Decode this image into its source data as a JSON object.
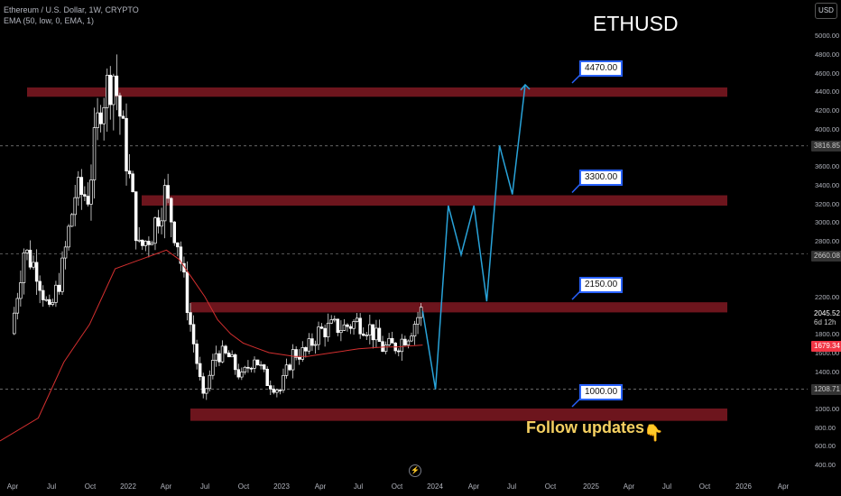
{
  "header": {
    "symbol_line": "Ethereum / U.S. Dollar, 1W, CRYPTO",
    "ema_line": "EMA (50, low, 0, EMA, 1)"
  },
  "title": "ETHUSD",
  "currency_button": "USD",
  "follow_text": "Follow updates",
  "hand_icon": "pointing-down-hand-icon",
  "price_axis": {
    "ticks": [
      "5000.00",
      "4800.00",
      "4600.00",
      "4400.00",
      "4200.00",
      "4000.00",
      "3600.00",
      "3400.00",
      "3200.00",
      "3000.00",
      "2800.00",
      "2200.00",
      "1800.00",
      "1600.00",
      "1400.00",
      "1000.00",
      "800.00",
      "600.00",
      "400.00"
    ]
  },
  "price_markers": {
    "level_3816": "3816.85",
    "level_2660": "2660.08",
    "current_price": "2045.52",
    "countdown": "6d 12h",
    "ema_value": "1679.34",
    "level_1208": "1208.71"
  },
  "time_axis": [
    "Apr",
    "Jul",
    "Oct",
    "2022",
    "Apr",
    "Jul",
    "Oct",
    "2023",
    "Apr",
    "Jul",
    "Oct",
    "2024",
    "Apr",
    "Jul",
    "Oct",
    "2025",
    "Apr",
    "Jul",
    "Oct",
    "2026",
    "Apr"
  ],
  "zones": [
    {
      "label": "4470.00",
      "low": 4340,
      "high": 4440
    },
    {
      "label": "3300.00",
      "low": 3180,
      "high": 3290
    },
    {
      "label": "2150.00",
      "low": 2030,
      "high": 2140
    },
    {
      "label": "1000.00",
      "low": 870,
      "high": 1000
    }
  ],
  "colors": {
    "background": "#000000",
    "zone": "#801922",
    "candle_up": "#ffffff",
    "candle_down": "#ffffff",
    "ema": "#d32f2f",
    "projection": "#29a3d9",
    "current_price_bg": "#ffffff",
    "ema_marker_bg": "#f23645",
    "follow_text": "#f5d061"
  },
  "chart_data": {
    "type": "candlestick",
    "symbol": "ETHUSD",
    "timeframe": "1W",
    "ylim": [
      400,
      5000
    ],
    "x_start": "2021-03",
    "x_end": "2026-04",
    "candles_monthly_approx": [
      {
        "date": "2021-03",
        "close": 1800
      },
      {
        "date": "2021-04",
        "close": 2700
      },
      {
        "date": "2021-05",
        "close": 2500
      },
      {
        "date": "2021-06",
        "close": 2000
      },
      {
        "date": "2021-07",
        "close": 2500
      },
      {
        "date": "2021-08",
        "close": 3300
      },
      {
        "date": "2021-09",
        "close": 3300
      },
      {
        "date": "2021-10",
        "close": 4300
      },
      {
        "date": "2021-11",
        "close": 4600
      },
      {
        "date": "2021-12",
        "close": 3700
      },
      {
        "date": "2022-01",
        "close": 2700
      },
      {
        "date": "2022-02",
        "close": 2900
      },
      {
        "date": "2022-03",
        "close": 3300
      },
      {
        "date": "2022-04",
        "close": 2800
      },
      {
        "date": "2022-05",
        "close": 1900
      },
      {
        "date": "2022-06",
        "close": 1100
      },
      {
        "date": "2022-07",
        "close": 1600
      },
      {
        "date": "2022-08",
        "close": 1550
      },
      {
        "date": "2022-09",
        "close": 1330
      },
      {
        "date": "2022-10",
        "close": 1570
      },
      {
        "date": "2022-11",
        "close": 1290
      },
      {
        "date": "2022-12",
        "close": 1200
      },
      {
        "date": "2023-01",
        "close": 1590
      },
      {
        "date": "2023-02",
        "close": 1600
      },
      {
        "date": "2023-03",
        "close": 1820
      },
      {
        "date": "2023-04",
        "close": 1870
      },
      {
        "date": "2023-05",
        "close": 1870
      },
      {
        "date": "2023-06",
        "close": 1930
      },
      {
        "date": "2023-07",
        "close": 1860
      },
      {
        "date": "2023-08",
        "close": 1650
      },
      {
        "date": "2023-09",
        "close": 1670
      },
      {
        "date": "2023-10",
        "close": 1800
      },
      {
        "date": "2023-11",
        "close": 2045
      }
    ],
    "projection_path": [
      {
        "date": "2023-11",
        "price": 2045
      },
      {
        "date": "2023-12",
        "price": 1208
      },
      {
        "date": "2024-01",
        "price": 3180
      },
      {
        "date": "2024-02",
        "price": 2650
      },
      {
        "date": "2024-03",
        "price": 3180
      },
      {
        "date": "2024-04",
        "price": 2150
      },
      {
        "date": "2024-05",
        "price": 3820
      },
      {
        "date": "2024-06",
        "price": 3300
      },
      {
        "date": "2024-07",
        "price": 4470
      }
    ],
    "horizontal_lines": [
      3816.85,
      2660.08,
      1208.71
    ]
  }
}
